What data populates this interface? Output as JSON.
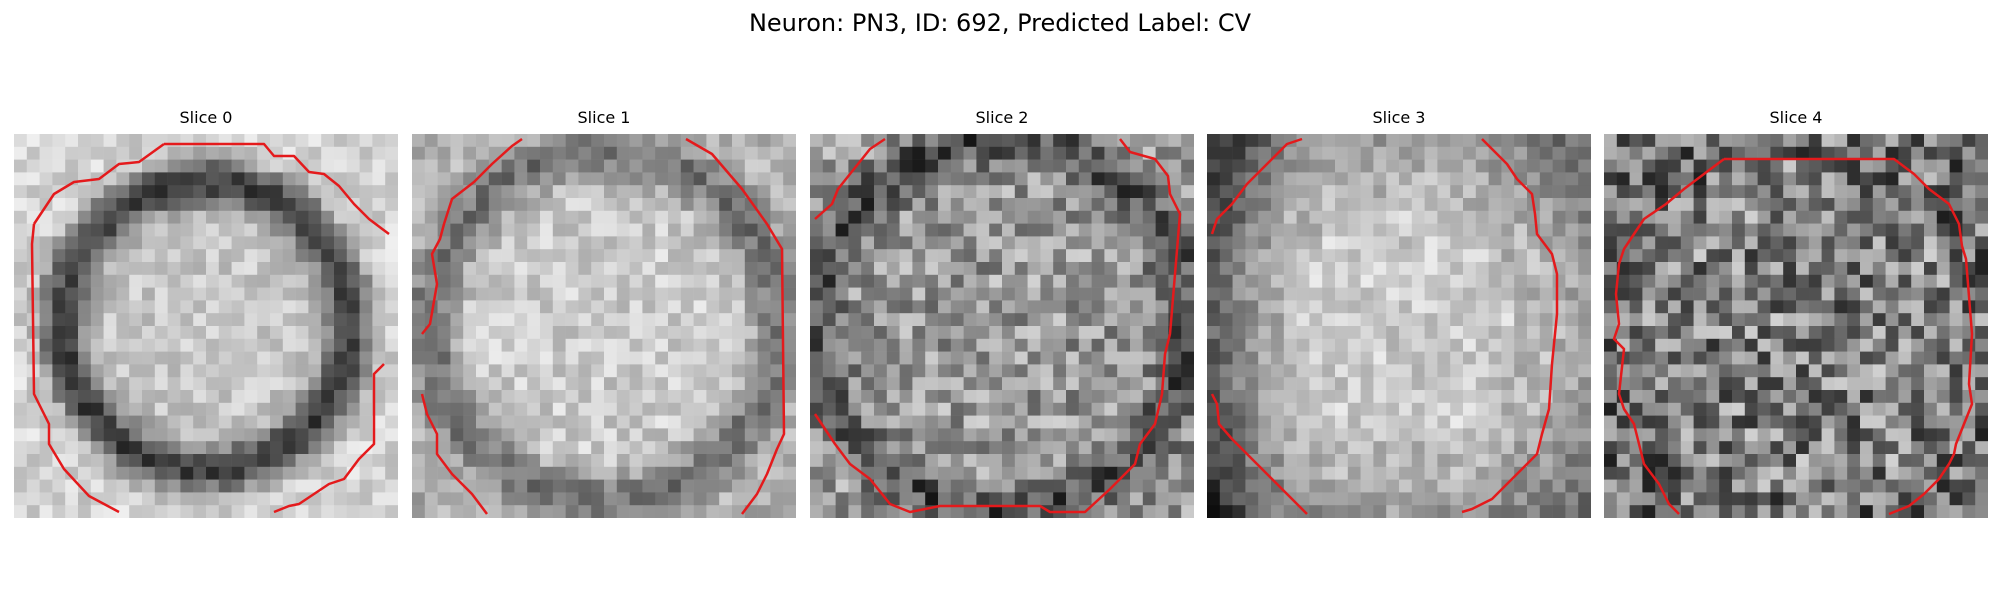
{
  "figure": {
    "suptitle": "Neuron: PN3, ID: 692, Predicted Label: CV",
    "panels": [
      {
        "title": "Slice 0",
        "pattern": "ring-dark"
      },
      {
        "title": "Slice 1",
        "pattern": "bright-center"
      },
      {
        "title": "Slice 2",
        "pattern": "mottled"
      },
      {
        "title": "Slice 3",
        "pattern": "bright-center-dark-corners"
      },
      {
        "title": "Slice 4",
        "pattern": "noisy-dark"
      }
    ],
    "image_description": "grayscale 2D slices with red contour outlines",
    "contour_color": "#e41a1c"
  }
}
